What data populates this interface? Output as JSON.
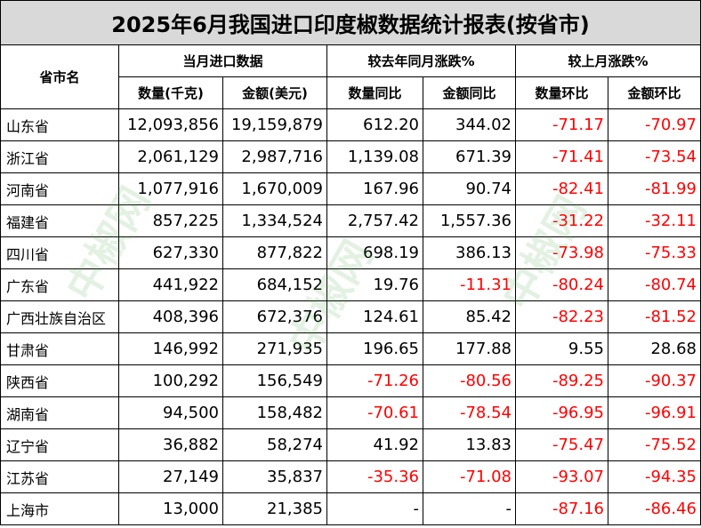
{
  "title": "2025年6月我国进口印度椒数据统计报表(按省市)",
  "headers": {
    "province": "省市名",
    "group_import": "当月进口数据",
    "group_yoy": "较去年同月涨跌%",
    "group_mom": "较上月涨跌%",
    "qty": "数量(千克)",
    "amount": "金额(美元)",
    "qty_yoy": "数量同比",
    "amt_yoy": "金额同比",
    "qty_mom": "数量环比",
    "amt_mom": "金额环比"
  },
  "rows": [
    {
      "province": "山东省",
      "qty": "12,093,856",
      "amount": "19,159,879",
      "qty_yoy": "612.20",
      "amt_yoy": "344.02",
      "qty_mom": "-71.17",
      "amt_mom": "-70.97"
    },
    {
      "province": "浙江省",
      "qty": "2,061,129",
      "amount": "2,987,716",
      "qty_yoy": "1,139.08",
      "amt_yoy": "671.39",
      "qty_mom": "-71.41",
      "amt_mom": "-73.54"
    },
    {
      "province": "河南省",
      "qty": "1,077,916",
      "amount": "1,670,009",
      "qty_yoy": "167.96",
      "amt_yoy": "90.74",
      "qty_mom": "-82.41",
      "amt_mom": "-81.99"
    },
    {
      "province": "福建省",
      "qty": "857,225",
      "amount": "1,334,524",
      "qty_yoy": "2,757.42",
      "amt_yoy": "1,557.36",
      "qty_mom": "-31.22",
      "amt_mom": "-32.11"
    },
    {
      "province": "四川省",
      "qty": "627,330",
      "amount": "877,822",
      "qty_yoy": "698.19",
      "amt_yoy": "386.13",
      "qty_mom": "-73.98",
      "amt_mom": "-75.33"
    },
    {
      "province": "广东省",
      "qty": "441,922",
      "amount": "684,152",
      "qty_yoy": "19.76",
      "amt_yoy": "-11.31",
      "qty_mom": "-80.24",
      "amt_mom": "-80.74"
    },
    {
      "province": "广西壮族自治区",
      "qty": "408,396",
      "amount": "672,376",
      "qty_yoy": "124.61",
      "amt_yoy": "85.42",
      "qty_mom": "-82.23",
      "amt_mom": "-81.52"
    },
    {
      "province": "甘肃省",
      "qty": "146,992",
      "amount": "271,935",
      "qty_yoy": "196.65",
      "amt_yoy": "177.88",
      "qty_mom": "9.55",
      "amt_mom": "28.68"
    },
    {
      "province": "陕西省",
      "qty": "100,292",
      "amount": "156,549",
      "qty_yoy": "-71.26",
      "amt_yoy": "-80.56",
      "qty_mom": "-89.25",
      "amt_mom": "-90.37"
    },
    {
      "province": "湖南省",
      "qty": "94,500",
      "amount": "158,482",
      "qty_yoy": "-70.61",
      "amt_yoy": "-78.54",
      "qty_mom": "-96.95",
      "amt_mom": "-96.91"
    },
    {
      "province": "辽宁省",
      "qty": "36,882",
      "amount": "58,274",
      "qty_yoy": "41.92",
      "amt_yoy": "13.83",
      "qty_mom": "-75.47",
      "amt_mom": "-75.52"
    },
    {
      "province": "江苏省",
      "qty": "27,149",
      "amount": "35,837",
      "qty_yoy": "-35.36",
      "amt_yoy": "-71.08",
      "qty_mom": "-93.07",
      "amt_mom": "-94.35"
    },
    {
      "province": "上海市",
      "qty": "13,000",
      "amount": "21,385",
      "qty_yoy": "-",
      "amt_yoy": "-",
      "qty_mom": "-87.16",
      "amt_mom": "-86.46"
    }
  ],
  "watermark": "中椒网",
  "colors": {
    "title_bg": "#d9d9d9",
    "negative": "#ff0000",
    "watermark": "#50aa50"
  }
}
